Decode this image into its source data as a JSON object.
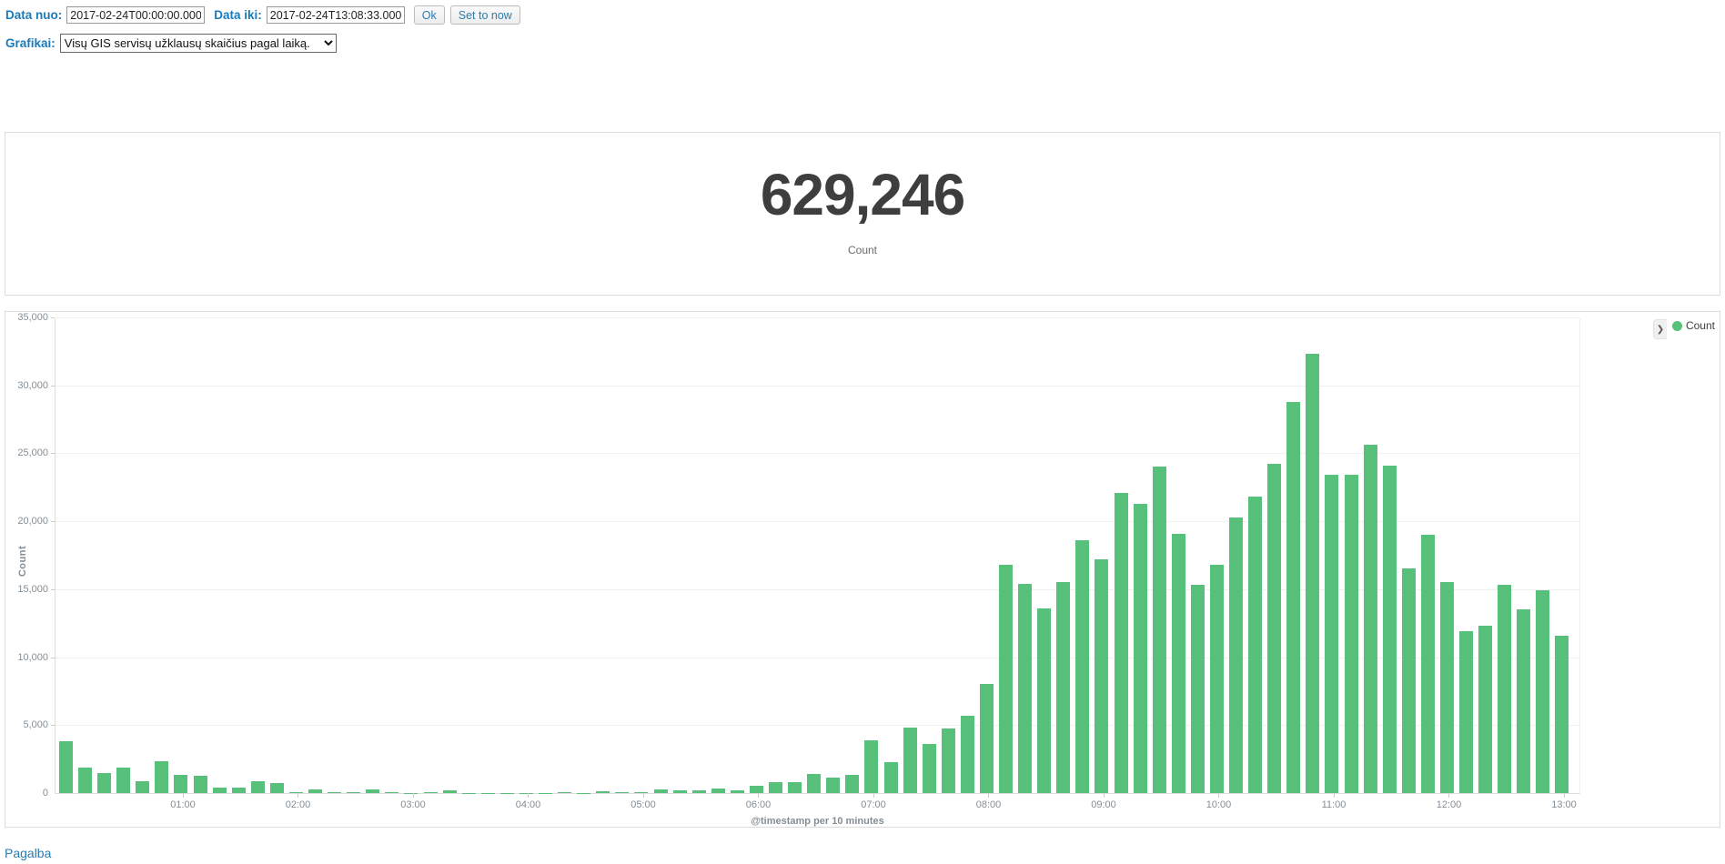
{
  "toolbar": {
    "date_from_label": "Data nuo:",
    "date_from_value": "2017-02-24T00:00:00.000",
    "date_to_label": "Data iki:",
    "date_to_value": "2017-02-24T13:08:33.000",
    "ok_label": "Ok",
    "set_to_now_label": "Set to now",
    "chart_select_label": "Grafikai:",
    "chart_select_value": "Visų GIS servisų užklausų skaičius pagal laiką."
  },
  "metric": {
    "value": "629,246",
    "label": "Count"
  },
  "chart_data": {
    "type": "bar",
    "title": "",
    "xlabel": "@timestamp per 10 minutes",
    "ylabel": "Count",
    "ylim": [
      0,
      35000
    ],
    "y_tick_step": 5000,
    "grid": true,
    "legend_position": "right",
    "legend": {
      "label": "Count",
      "color": "#57c17b"
    },
    "bucket_minutes": 10,
    "x_hour_labels": [
      "01:00",
      "02:00",
      "03:00",
      "04:00",
      "05:00",
      "06:00",
      "07:00",
      "08:00",
      "09:00",
      "10:00",
      "11:00",
      "12:00",
      "13:00"
    ],
    "times": [
      "00:00",
      "00:10",
      "00:20",
      "00:30",
      "00:40",
      "00:50",
      "01:00",
      "01:10",
      "01:20",
      "01:30",
      "01:40",
      "01:50",
      "02:00",
      "02:10",
      "02:20",
      "02:30",
      "02:40",
      "02:50",
      "03:00",
      "03:10",
      "03:20",
      "03:30",
      "03:40",
      "03:50",
      "04:00",
      "04:10",
      "04:20",
      "04:30",
      "04:40",
      "04:50",
      "05:00",
      "05:10",
      "05:20",
      "05:30",
      "05:40",
      "05:50",
      "06:00",
      "06:10",
      "06:20",
      "06:30",
      "06:40",
      "06:50",
      "07:00",
      "07:10",
      "07:20",
      "07:30",
      "07:40",
      "07:50",
      "08:00",
      "08:10",
      "08:20",
      "08:30",
      "08:40",
      "08:50",
      "09:00",
      "09:10",
      "09:20",
      "09:30",
      "09:40",
      "09:50",
      "10:00",
      "10:10",
      "10:20",
      "10:30",
      "10:40",
      "10:50",
      "11:00",
      "11:10",
      "11:20",
      "11:30",
      "11:40",
      "11:50",
      "12:00",
      "12:10",
      "12:20",
      "12:30",
      "12:40",
      "12:50",
      "13:00"
    ],
    "values": [
      3800,
      1900,
      1450,
      1900,
      850,
      2350,
      1350,
      1250,
      400,
      400,
      900,
      750,
      50,
      250,
      100,
      36,
      280,
      40,
      30,
      40,
      220,
      30,
      20,
      30,
      20,
      30,
      40,
      30,
      120,
      100,
      60,
      250,
      180,
      200,
      350,
      230,
      550,
      830,
      830,
      1400,
      1120,
      1350,
      3900,
      2280,
      4800,
      3600,
      4750,
      5700,
      8000,
      16800,
      15400,
      13600,
      15500,
      18600,
      17200,
      22100,
      21300,
      24000,
      19100,
      15300,
      16800,
      20300,
      21800,
      24200,
      28800,
      32300,
      23400,
      23400,
      25600,
      24100,
      16500,
      19000,
      15500,
      11900,
      12300,
      15300,
      13500,
      14900,
      11600
    ],
    "total_count": 629246
  },
  "footer": {
    "help_label": "Pagalba"
  },
  "colors": {
    "bar_green": "#57c17b",
    "label_blue": "#1a7bb9",
    "link_blue": "#2a7cb0",
    "axis_text": "#848e96",
    "panel_border": "#dcdcdc"
  }
}
